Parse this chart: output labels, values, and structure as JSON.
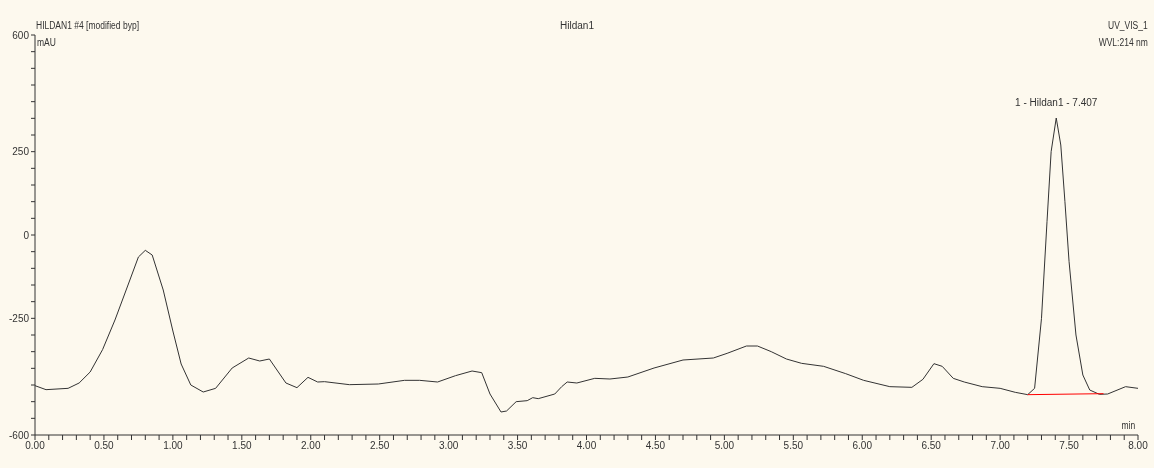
{
  "chart_data": {
    "type": "line",
    "title": "Hildan1",
    "xlabel": "min",
    "ylabel": "mAU",
    "annotations": [
      "HILDAN1 #4 [modified byp]",
      "UV_VIS_1",
      "WVL:214 nm",
      {
        "text": "1 - Hildan1 - 7.407",
        "x": 7.407,
        "y": 351
      }
    ],
    "marker": "none",
    "line_style": "solid",
    "xlim": [
      0,
      8
    ],
    "ylim": [
      -600,
      600
    ],
    "xticks": [
      {
        "value": 0,
        "label": "0.00"
      },
      {
        "value": 0.1,
        "label": null
      },
      {
        "value": 0.2,
        "label": null
      },
      {
        "value": 0.3,
        "label": null
      },
      {
        "value": 0.4,
        "label": null
      },
      {
        "value": 0.5,
        "label": "0.50"
      },
      {
        "value": 0.6,
        "label": null
      },
      {
        "value": 0.7,
        "label": null
      },
      {
        "value": 0.8,
        "label": null
      },
      {
        "value": 0.9,
        "label": null
      },
      {
        "value": 1,
        "label": "1.00"
      },
      {
        "value": 1.1,
        "label": null
      },
      {
        "value": 1.2,
        "label": null
      },
      {
        "value": 1.3,
        "label": null
      },
      {
        "value": 1.4,
        "label": null
      },
      {
        "value": 1.5,
        "label": "1.50"
      },
      {
        "value": 1.6,
        "label": null
      },
      {
        "value": 1.7,
        "label": null
      },
      {
        "value": 1.8,
        "label": null
      },
      {
        "value": 1.9,
        "label": null
      },
      {
        "value": 2,
        "label": "2.00"
      },
      {
        "value": 2.1,
        "label": null
      },
      {
        "value": 2.2,
        "label": null
      },
      {
        "value": 2.3,
        "label": null
      },
      {
        "value": 2.4,
        "label": null
      },
      {
        "value": 2.5,
        "label": "2.50"
      },
      {
        "value": 2.6,
        "label": null
      },
      {
        "value": 2.7,
        "label": null
      },
      {
        "value": 2.8,
        "label": null
      },
      {
        "value": 2.9,
        "label": null
      },
      {
        "value": 3,
        "label": "3.00"
      },
      {
        "value": 3.1,
        "label": null
      },
      {
        "value": 3.2,
        "label": null
      },
      {
        "value": 3.3,
        "label": null
      },
      {
        "value": 3.4,
        "label": null
      },
      {
        "value": 3.5,
        "label": "3.50"
      },
      {
        "value": 3.6,
        "label": null
      },
      {
        "value": 3.7,
        "label": null
      },
      {
        "value": 3.8,
        "label": null
      },
      {
        "value": 3.9,
        "label": null
      },
      {
        "value": 4,
        "label": "4.00"
      },
      {
        "value": 4.1,
        "label": null
      },
      {
        "value": 4.2,
        "label": null
      },
      {
        "value": 4.3,
        "label": null
      },
      {
        "value": 4.4,
        "label": null
      },
      {
        "value": 4.5,
        "label": "4.50"
      },
      {
        "value": 4.6,
        "label": null
      },
      {
        "value": 4.7,
        "label": null
      },
      {
        "value": 4.8,
        "label": null
      },
      {
        "value": 4.9,
        "label": null
      },
      {
        "value": 5,
        "label": "5.00"
      },
      {
        "value": 5.1,
        "label": null
      },
      {
        "value": 5.2,
        "label": null
      },
      {
        "value": 5.3,
        "label": null
      },
      {
        "value": 5.4,
        "label": null
      },
      {
        "value": 5.5,
        "label": "5.50"
      },
      {
        "value": 5.6,
        "label": null
      },
      {
        "value": 5.7,
        "label": null
      },
      {
        "value": 5.8,
        "label": null
      },
      {
        "value": 5.9,
        "label": null
      },
      {
        "value": 6,
        "label": "6.00"
      },
      {
        "value": 6.1,
        "label": null
      },
      {
        "value": 6.2,
        "label": null
      },
      {
        "value": 6.3,
        "label": null
      },
      {
        "value": 6.4,
        "label": null
      },
      {
        "value": 6.5,
        "label": "6.50"
      },
      {
        "value": 6.6,
        "label": null
      },
      {
        "value": 6.7,
        "label": null
      },
      {
        "value": 6.8,
        "label": null
      },
      {
        "value": 6.9,
        "label": null
      },
      {
        "value": 7,
        "label": "7.00"
      },
      {
        "value": 7.1,
        "label": null
      },
      {
        "value": 7.2,
        "label": null
      },
      {
        "value": 7.3,
        "label": null
      },
      {
        "value": 7.4,
        "label": null
      },
      {
        "value": 7.5,
        "label": "7.50"
      },
      {
        "value": 7.6,
        "label": null
      },
      {
        "value": 7.7,
        "label": null
      },
      {
        "value": 7.8,
        "label": null
      },
      {
        "value": 7.9,
        "label": null
      },
      {
        "value": 8,
        "label": "8.00"
      }
    ],
    "yticks": [
      -600,
      {
        "value": -550,
        "label": null
      },
      {
        "value": -500,
        "label": null
      },
      {
        "value": -450,
        "label": null
      },
      {
        "value": -400,
        "label": null
      },
      {
        "value": -350,
        "label": null
      },
      {
        "value": -300,
        "label": null
      },
      -250,
      {
        "value": -200,
        "label": null
      },
      {
        "value": -150,
        "label": null
      },
      {
        "value": -100,
        "label": null
      },
      {
        "value": -50,
        "label": null
      },
      0,
      {
        "value": 50,
        "label": null
      },
      {
        "value": 100,
        "label": null
      },
      {
        "value": 150,
        "label": null
      },
      {
        "value": 200,
        "label": null
      },
      250,
      {
        "value": 300,
        "label": null
      },
      {
        "value": 350,
        "label": null
      },
      {
        "value": 400,
        "label": null
      },
      {
        "value": 450,
        "label": null
      },
      {
        "value": 500,
        "label": null
      },
      {
        "value": 550,
        "label": null
      },
      600
    ],
    "series": [
      {
        "color": "#333333",
        "x": [
          0,
          0.08,
          0.24,
          0.32,
          0.4,
          0.49,
          0.58,
          0.68,
          0.75,
          0.8,
          0.85,
          0.93,
          1,
          1.06,
          1.13,
          1.22,
          1.31,
          1.43,
          1.55,
          1.63,
          1.7,
          1.82,
          1.9,
          1.98,
          2.05,
          2.1,
          2.28,
          2.49,
          2.68,
          2.79,
          2.92,
          3.05,
          3.17,
          3.24,
          3.3,
          3.38,
          3.42,
          3.49,
          3.57,
          3.61,
          3.65,
          3.77,
          3.82,
          3.86,
          3.93,
          4.06,
          4.17,
          4.3,
          4.49,
          4.7,
          4.92,
          5.02,
          5.16,
          5.24,
          5.34,
          5.45,
          5.56,
          5.72,
          5.88,
          6.01,
          6.2,
          6.36,
          6.44,
          6.52,
          6.58,
          6.66,
          6.74,
          6.87,
          7,
          7.11,
          7.2,
          7.25,
          7.3,
          7.34,
          7.37,
          7.407,
          7.44,
          7.47,
          7.5,
          7.55,
          7.6,
          7.65,
          7.72,
          7.78,
          7.91,
          8
        ],
        "values": [
          -452,
          -464,
          -460,
          -444,
          -411,
          -344,
          -255,
          -144,
          -66,
          -46,
          -60,
          -165,
          -288,
          -387,
          -450,
          -471,
          -460,
          -399,
          -369,
          -378,
          -372,
          -444,
          -458,
          -427,
          -441,
          -440,
          -449,
          -447,
          -436,
          -436,
          -441,
          -422,
          -408,
          -413,
          -477,
          -531,
          -528,
          -500,
          -497,
          -488,
          -491,
          -477,
          -455,
          -441,
          -444,
          -430,
          -432,
          -426,
          -399,
          -375,
          -369,
          -355,
          -333,
          -333,
          -350,
          -372,
          -385,
          -394,
          -416,
          -436,
          -455,
          -457,
          -433,
          -386,
          -394,
          -430,
          -441,
          -455,
          -460,
          -472,
          -479,
          -460,
          -250,
          40,
          250,
          351,
          270,
          100,
          -80,
          -300,
          -420,
          -465,
          -478,
          -477,
          -455,
          -460
        ]
      },
      {
        "color": "#ff0000",
        "x": [
          7.2,
          7.75
        ],
        "values": [
          -479,
          -476
        ]
      }
    ]
  }
}
